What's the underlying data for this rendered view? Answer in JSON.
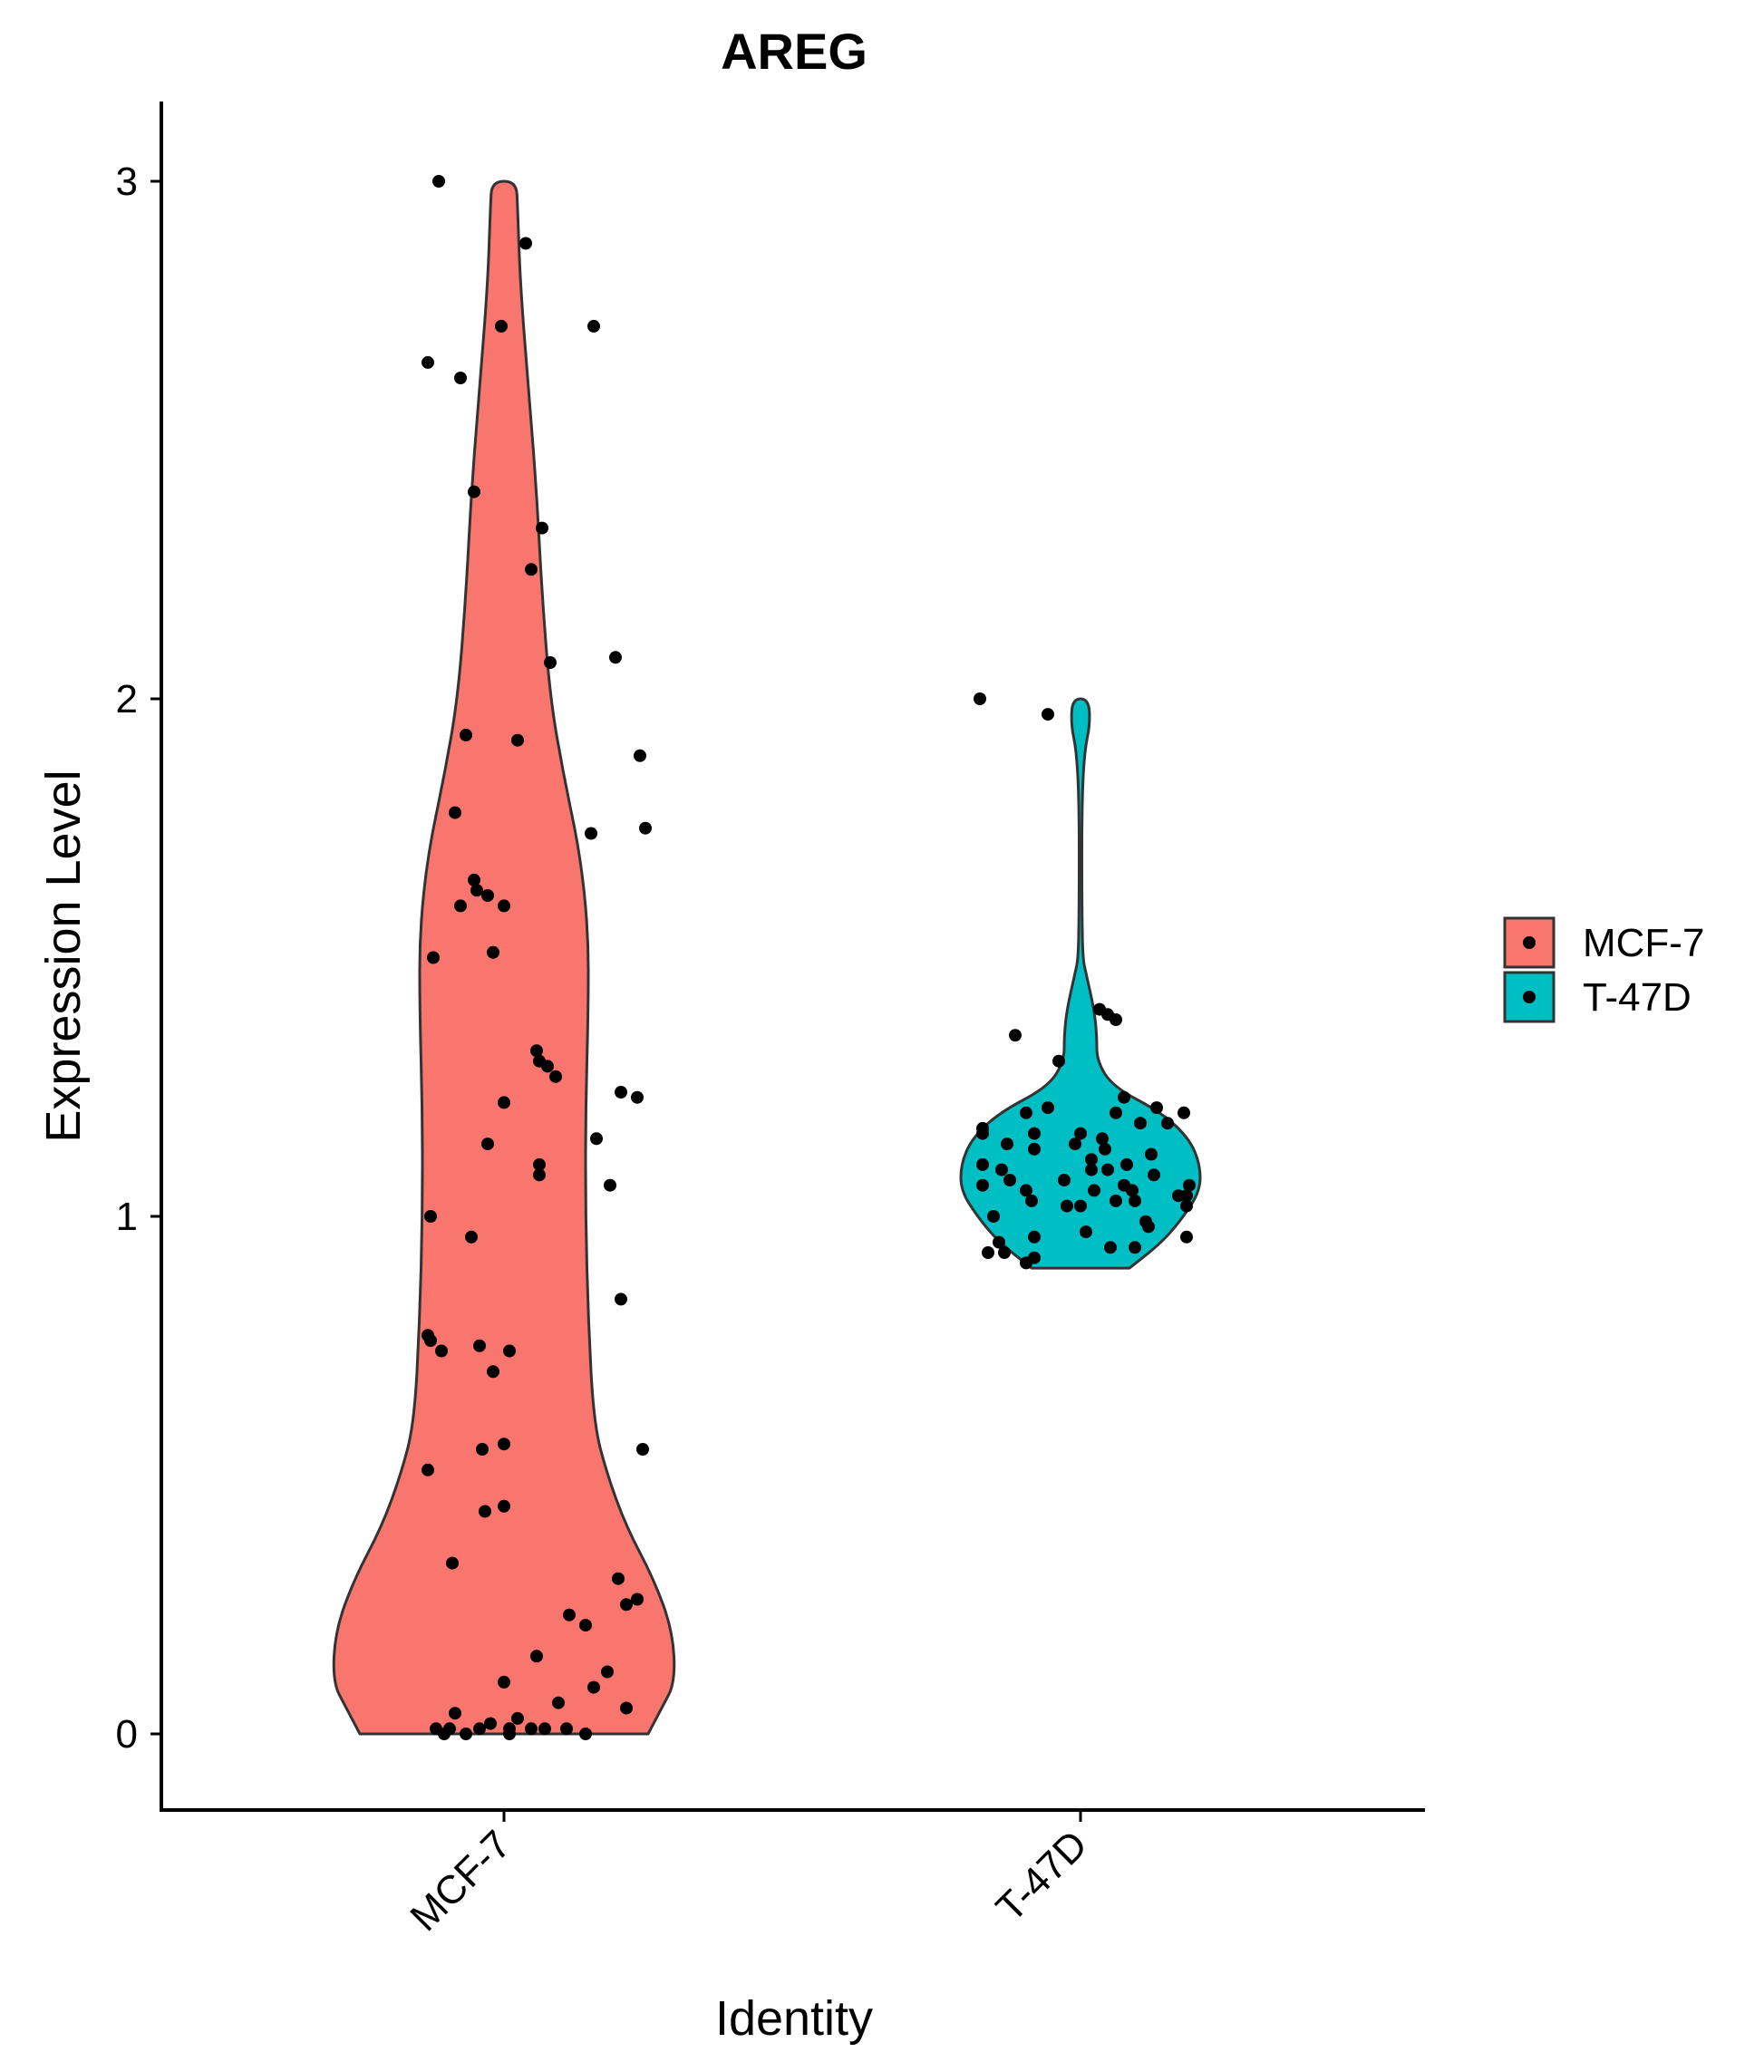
{
  "chart_data": {
    "type": "violin",
    "title": "AREG",
    "xlabel": "Identity",
    "ylabel": "Expression Level",
    "ylim": [
      -0.15,
      3.2
    ],
    "y_ticks": [
      "0",
      "1",
      "2",
      "3"
    ],
    "categories": [
      "MCF-7",
      "T-47D"
    ],
    "colors": {
      "MCF-7": "#F8766D",
      "T-47D": "#00BFC4",
      "outline": "#333333",
      "points": "#000000"
    },
    "legend": {
      "position": "right",
      "entries": [
        "MCF-7",
        "T-47D"
      ]
    },
    "grid": false,
    "series": [
      {
        "name": "MCF-7",
        "violin_density": [
          [
            0,
            0.53
          ],
          [
            0.05,
            0.58
          ],
          [
            0.1,
            0.63
          ],
          [
            0.2,
            0.62
          ],
          [
            0.3,
            0.55
          ],
          [
            0.4,
            0.45
          ],
          [
            0.5,
            0.38
          ],
          [
            0.6,
            0.33
          ],
          [
            0.8,
            0.31
          ],
          [
            1.0,
            0.3
          ],
          [
            1.2,
            0.3
          ],
          [
            1.4,
            0.31
          ],
          [
            1.55,
            0.31
          ],
          [
            1.7,
            0.28
          ],
          [
            1.85,
            0.22
          ],
          [
            2.0,
            0.17
          ],
          [
            2.2,
            0.14
          ],
          [
            2.4,
            0.12
          ],
          [
            2.6,
            0.09
          ],
          [
            2.8,
            0.06
          ],
          [
            2.95,
            0.05
          ],
          [
            3.0,
            0.045
          ]
        ],
        "points": [
          [
            -0.22,
            0.0
          ],
          [
            -0.25,
            0.01
          ],
          [
            -0.2,
            0.01
          ],
          [
            -0.14,
            0.0
          ],
          [
            -0.05,
            0.02
          ],
          [
            0.02,
            0.0
          ],
          [
            0.1,
            0.01
          ],
          [
            0.2,
            0.06
          ],
          [
            0.3,
            0.0
          ],
          [
            0.45,
            0.05
          ],
          [
            0.15,
            0.01
          ],
          [
            0.02,
            0.01
          ],
          [
            -0.18,
            0.04
          ],
          [
            -0.09,
            0.01
          ],
          [
            0.0,
            0.1
          ],
          [
            0.05,
            0.03
          ],
          [
            0.12,
            0.15
          ],
          [
            0.23,
            0.01
          ],
          [
            0.33,
            0.09
          ],
          [
            0.38,
            0.12
          ],
          [
            0.3,
            0.21
          ],
          [
            0.45,
            0.25
          ],
          [
            0.42,
            0.3
          ],
          [
            0.24,
            0.23
          ],
          [
            0.49,
            0.26
          ],
          [
            -0.28,
            0.51
          ],
          [
            -0.19,
            0.33
          ],
          [
            0.0,
            0.56
          ],
          [
            0.0,
            0.44
          ],
          [
            -0.08,
            0.55
          ],
          [
            -0.07,
            0.43
          ],
          [
            -0.09,
            0.75
          ],
          [
            -0.04,
            0.7
          ],
          [
            0.02,
            0.74
          ],
          [
            -0.23,
            0.74
          ],
          [
            -0.27,
            0.76
          ],
          [
            -0.28,
            0.77
          ],
          [
            -0.12,
            0.96
          ],
          [
            0.43,
            0.84
          ],
          [
            0.51,
            0.55
          ],
          [
            -0.27,
            1.0
          ],
          [
            -0.06,
            1.14
          ],
          [
            0.13,
            1.1
          ],
          [
            0.13,
            1.08
          ],
          [
            0.34,
            1.15
          ],
          [
            0.39,
            1.06
          ],
          [
            0.43,
            1.24
          ],
          [
            0.49,
            1.23
          ],
          [
            0.0,
            1.22
          ],
          [
            0.16,
            1.29
          ],
          [
            0.19,
            1.27
          ],
          [
            0.13,
            1.3
          ],
          [
            0.12,
            1.32
          ],
          [
            -0.04,
            1.51
          ],
          [
            0.0,
            1.6
          ],
          [
            -0.06,
            1.62
          ],
          [
            -0.1,
            1.63
          ],
          [
            -0.11,
            1.65
          ],
          [
            -0.26,
            1.5
          ],
          [
            -0.16,
            1.6
          ],
          [
            -0.18,
            1.78
          ],
          [
            -0.14,
            1.93
          ],
          [
            0.05,
            1.92
          ],
          [
            0.32,
            1.74
          ],
          [
            0.5,
            1.89
          ],
          [
            0.52,
            1.75
          ],
          [
            0.17,
            2.07
          ],
          [
            0.41,
            2.08
          ],
          [
            0.1,
            2.25
          ],
          [
            0.14,
            2.33
          ],
          [
            -0.11,
            2.4
          ],
          [
            -0.16,
            2.62
          ],
          [
            -0.28,
            2.65
          ],
          [
            -0.01,
            2.72
          ],
          [
            0.33,
            2.72
          ],
          [
            0.08,
            2.88
          ],
          [
            -0.24,
            3.0
          ]
        ]
      },
      {
        "name": "T-47D",
        "violin_density": [
          [
            0.9,
            0.18
          ],
          [
            0.95,
            0.3
          ],
          [
            1.0,
            0.38
          ],
          [
            1.05,
            0.44
          ],
          [
            1.1,
            0.44
          ],
          [
            1.15,
            0.4
          ],
          [
            1.2,
            0.3
          ],
          [
            1.25,
            0.12
          ],
          [
            1.3,
            0.06
          ],
          [
            1.35,
            0.06
          ],
          [
            1.4,
            0.05
          ],
          [
            1.47,
            0.02
          ],
          [
            1.5,
            0.008
          ],
          [
            1.6,
            0.005
          ],
          [
            1.8,
            0.005
          ],
          [
            1.9,
            0.015
          ],
          [
            1.95,
            0.035
          ],
          [
            2.0,
            0.03
          ]
        ],
        "points": [
          [
            -0.37,
            2.0
          ],
          [
            -0.12,
            1.97
          ],
          [
            -0.24,
            1.35
          ],
          [
            -0.08,
            1.3
          ],
          [
            0.07,
            1.4
          ],
          [
            0.1,
            1.39
          ],
          [
            0.13,
            1.38
          ],
          [
            -0.36,
            1.16
          ],
          [
            -0.36,
            1.17
          ],
          [
            -0.27,
            1.14
          ],
          [
            -0.2,
            1.2
          ],
          [
            -0.12,
            1.21
          ],
          [
            -0.17,
            1.16
          ],
          [
            -0.17,
            1.13
          ],
          [
            0.0,
            1.16
          ],
          [
            0.13,
            1.2
          ],
          [
            0.16,
            1.23
          ],
          [
            0.22,
            1.18
          ],
          [
            0.28,
            1.21
          ],
          [
            0.32,
            1.18
          ],
          [
            0.38,
            1.2
          ],
          [
            -0.36,
            1.1
          ],
          [
            -0.29,
            1.09
          ],
          [
            -0.26,
            1.07
          ],
          [
            -0.36,
            1.06
          ],
          [
            -0.32,
            1.0
          ],
          [
            -0.2,
            1.05
          ],
          [
            -0.18,
            1.03
          ],
          [
            -0.06,
            1.07
          ],
          [
            -0.02,
            1.14
          ],
          [
            0.04,
            1.11
          ],
          [
            0.04,
            1.09
          ],
          [
            0.1,
            1.09
          ],
          [
            0.16,
            1.06
          ],
          [
            0.2,
            1.03
          ],
          [
            -0.05,
            1.02
          ],
          [
            0.0,
            1.02
          ],
          [
            0.02,
            0.97
          ],
          [
            0.05,
            1.05
          ],
          [
            0.13,
            1.03
          ],
          [
            0.19,
            1.05
          ],
          [
            0.27,
            1.08
          ],
          [
            0.36,
            1.04
          ],
          [
            0.39,
            1.02
          ],
          [
            -0.3,
            0.95
          ],
          [
            -0.34,
            0.93
          ],
          [
            -0.28,
            0.93
          ],
          [
            -0.17,
            0.96
          ],
          [
            -0.17,
            0.92
          ],
          [
            -0.2,
            0.91
          ],
          [
            0.11,
            0.94
          ],
          [
            0.2,
            0.94
          ],
          [
            0.24,
            0.99
          ],
          [
            0.25,
            0.98
          ],
          [
            0.39,
            1.04
          ],
          [
            0.4,
            1.06
          ],
          [
            0.39,
            0.96
          ],
          [
            0.17,
            1.1
          ],
          [
            0.08,
            1.15
          ],
          [
            0.09,
            1.13
          ],
          [
            0.26,
            1.12
          ]
        ]
      }
    ]
  }
}
